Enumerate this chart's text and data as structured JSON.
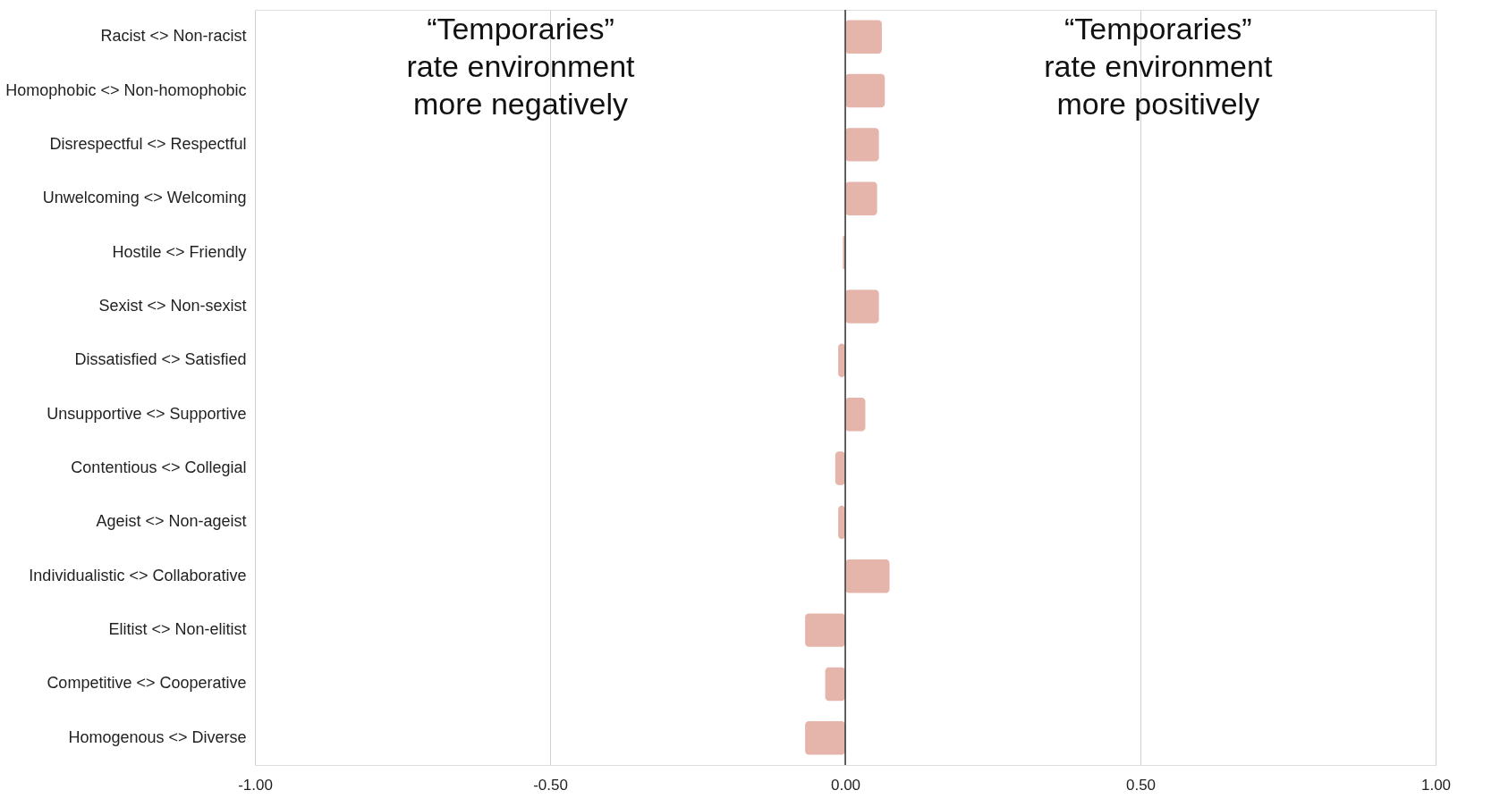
{
  "chart_data": {
    "type": "bar",
    "orientation": "horizontal",
    "categories": [
      "Racist <> Non-racist",
      "Homophobic <> Non-homophobic",
      "Disrespectful <> Respectful",
      "Unwelcoming <> Welcoming",
      "Hostile <> Friendly",
      "Sexist <> Non-sexist",
      "Dissatisfied <> Satisfied",
      "Unsupportive <> Supportive",
      "Contentious <> Collegial",
      "Ageist <> Non-ageist",
      "Individualistic <> Collaborative",
      "Elitist <> Non-elitist",
      "Competitive <> Cooperative",
      "Homogenous <> Diverse"
    ],
    "values": [
      0.062,
      0.067,
      0.057,
      0.054,
      -0.004,
      0.057,
      -0.012,
      0.034,
      -0.017,
      -0.012,
      0.075,
      -0.068,
      -0.034,
      -0.068
    ],
    "color": "#e5b5ac",
    "xlim": [
      -1.0,
      1.0
    ],
    "xticks": [
      {
        "value": -1.0,
        "label": "-1.00"
      },
      {
        "value": -0.5,
        "label": "-0.50"
      },
      {
        "value": 0,
        "label": "0.00"
      },
      {
        "value": 0.5,
        "label": "0.50"
      },
      {
        "value": 1.0,
        "label": "1.00"
      }
    ],
    "grid": "x",
    "ref_lines": [
      {
        "axis": "x",
        "value": 0,
        "color": "#333333"
      }
    ],
    "annotations": [
      "“Temporaries”\nrate environment\nmore negatively",
      "“Temporaries”\nrate environment\nmore positively"
    ]
  }
}
